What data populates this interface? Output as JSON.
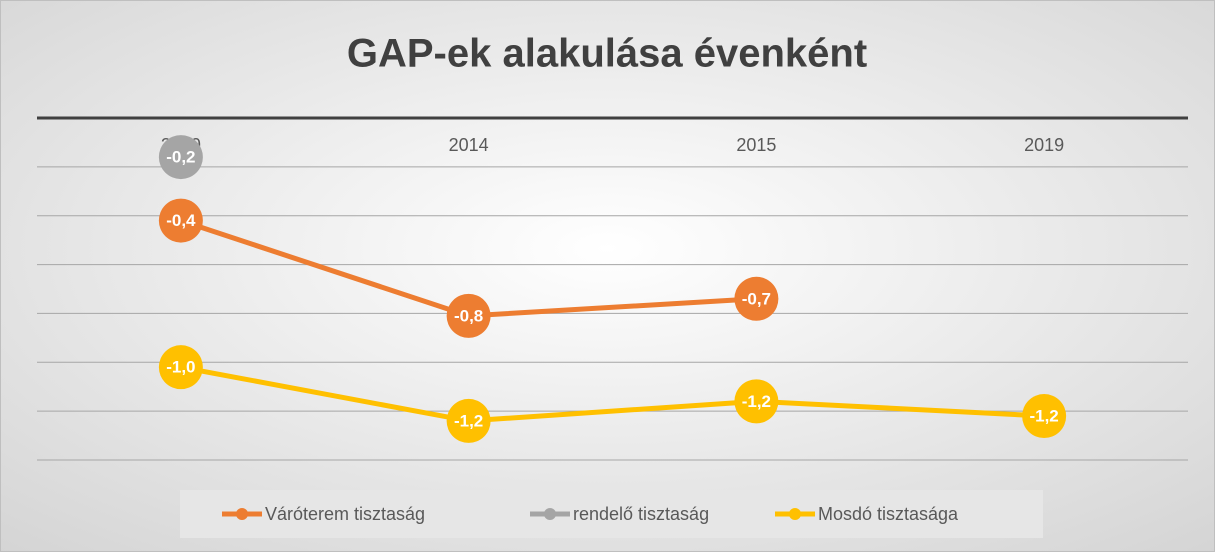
{
  "chart_data": {
    "type": "line",
    "title": "GAP-ek alakulása évenként",
    "categories": [
      "2010",
      "2014",
      "2015",
      "2019"
    ],
    "series": [
      {
        "name": "Váróterem tisztaság",
        "color": "#ed7d31",
        "values": [
          -0.42,
          -0.81,
          -0.74,
          null
        ],
        "value_labels": [
          "-0,4",
          "-0,8",
          "-0,7",
          null
        ]
      },
      {
        "name": "rendelő tisztaság",
        "color": "#a5a5a5",
        "values": [
          -0.16,
          null,
          null,
          null
        ],
        "value_labels": [
          "-0,2",
          null,
          null,
          null
        ]
      },
      {
        "name": "Mosdó tisztasága",
        "color": "#ffc000",
        "values": [
          -1.02,
          -1.24,
          -1.16,
          -1.22
        ],
        "value_labels": [
          "-1,0",
          "-1,2",
          "-1,2",
          "-1,2"
        ]
      }
    ],
    "ylim": [
      -1.4,
      0
    ],
    "yticks": [
      0,
      -0.2,
      -0.4,
      -0.6,
      -0.8,
      -1,
      -1.2,
      -1.4
    ],
    "grid": true,
    "legend": "bottom"
  }
}
